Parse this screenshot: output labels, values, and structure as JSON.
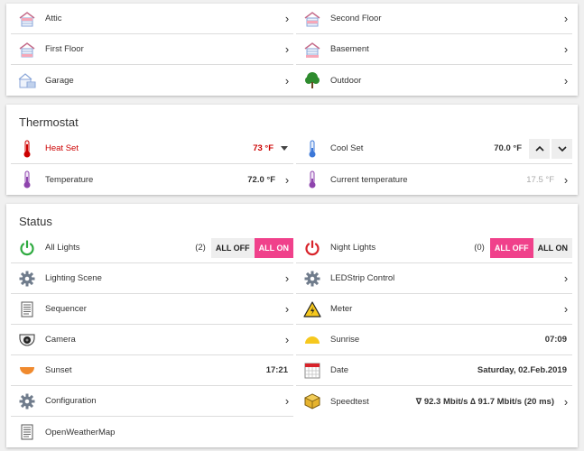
{
  "rooms": [
    {
      "label": "Attic",
      "icon": "attic-icon"
    },
    {
      "label": "Second Floor",
      "icon": "second-floor-icon"
    },
    {
      "label": "First Floor",
      "icon": "first-floor-icon"
    },
    {
      "label": "Basement",
      "icon": "basement-icon"
    },
    {
      "label": "Garage",
      "icon": "garage-icon"
    },
    {
      "label": "Outdoor",
      "icon": "tree-icon"
    }
  ],
  "thermostat": {
    "title": "Thermostat",
    "heat_set": {
      "label": "Heat Set",
      "value": "73 °F"
    },
    "cool_set": {
      "label": "Cool Set",
      "value": "70.0 °F"
    },
    "temperature": {
      "label": "Temperature",
      "value": "72.0 °F"
    },
    "current_temperature": {
      "label": "Current temperature",
      "value": "17.5 °F"
    }
  },
  "status": {
    "title": "Status",
    "all_lights": {
      "label": "All Lights",
      "count": "(2)",
      "off_label": "ALL OFF",
      "on_label": "ALL ON",
      "active": "on"
    },
    "night_lights": {
      "label": "Night Lights",
      "count": "(0)",
      "off_label": "ALL OFF",
      "on_label": "ALL ON",
      "active": "off"
    },
    "lighting_scene": {
      "label": "Lighting Scene"
    },
    "ledstrip": {
      "label": "LEDStrip Control"
    },
    "sequencer": {
      "label": "Sequencer"
    },
    "meter": {
      "label": "Meter"
    },
    "camera": {
      "label": "Camera"
    },
    "sunrise": {
      "label": "Sunrise",
      "value": "07:09"
    },
    "sunset": {
      "label": "Sunset",
      "value": "17:21"
    },
    "date": {
      "label": "Date",
      "value": "Saturday, 02.Feb.2019"
    },
    "configuration": {
      "label": "Configuration"
    },
    "speedtest": {
      "label": "Speedtest",
      "value": "∇ 92.3 Mbit/s ∆ 91.7 Mbit/s (20 ms)"
    },
    "openweathermap": {
      "label": "OpenWeatherMap"
    }
  },
  "colors": {
    "accent": "#f0418b",
    "alert_red": "#cc0000",
    "power_green": "#2eaa3f",
    "power_red": "#d8232a",
    "sun_yellow": "#f6c81e",
    "sunset_orange": "#f08a2e"
  }
}
